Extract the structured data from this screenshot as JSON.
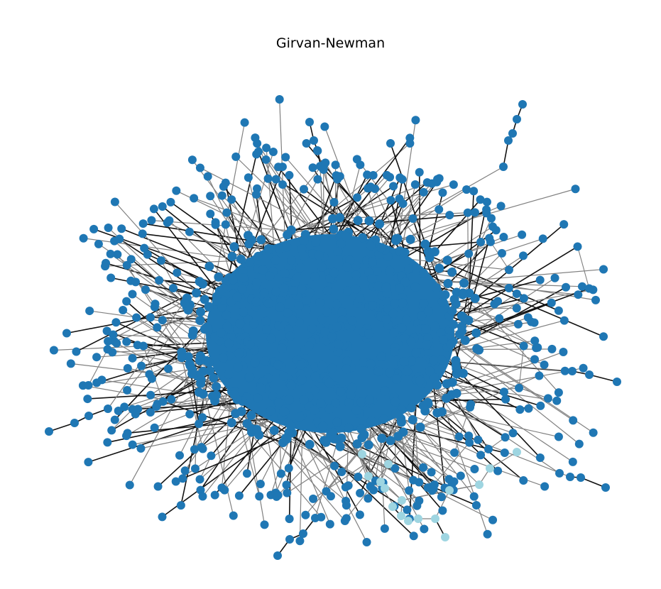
{
  "figure": {
    "title": "Girvan-Newman"
  },
  "colors": {
    "background": "#ffffff",
    "community_main": "#1f77b4",
    "community_minor": "#9ed5e1",
    "edge_light": "#808080",
    "edge_dark": "#111111"
  },
  "communities": [
    {
      "name": "community-main",
      "color": "#1f77b4"
    },
    {
      "name": "community-minor",
      "color": "#9ed5e1"
    }
  ]
}
